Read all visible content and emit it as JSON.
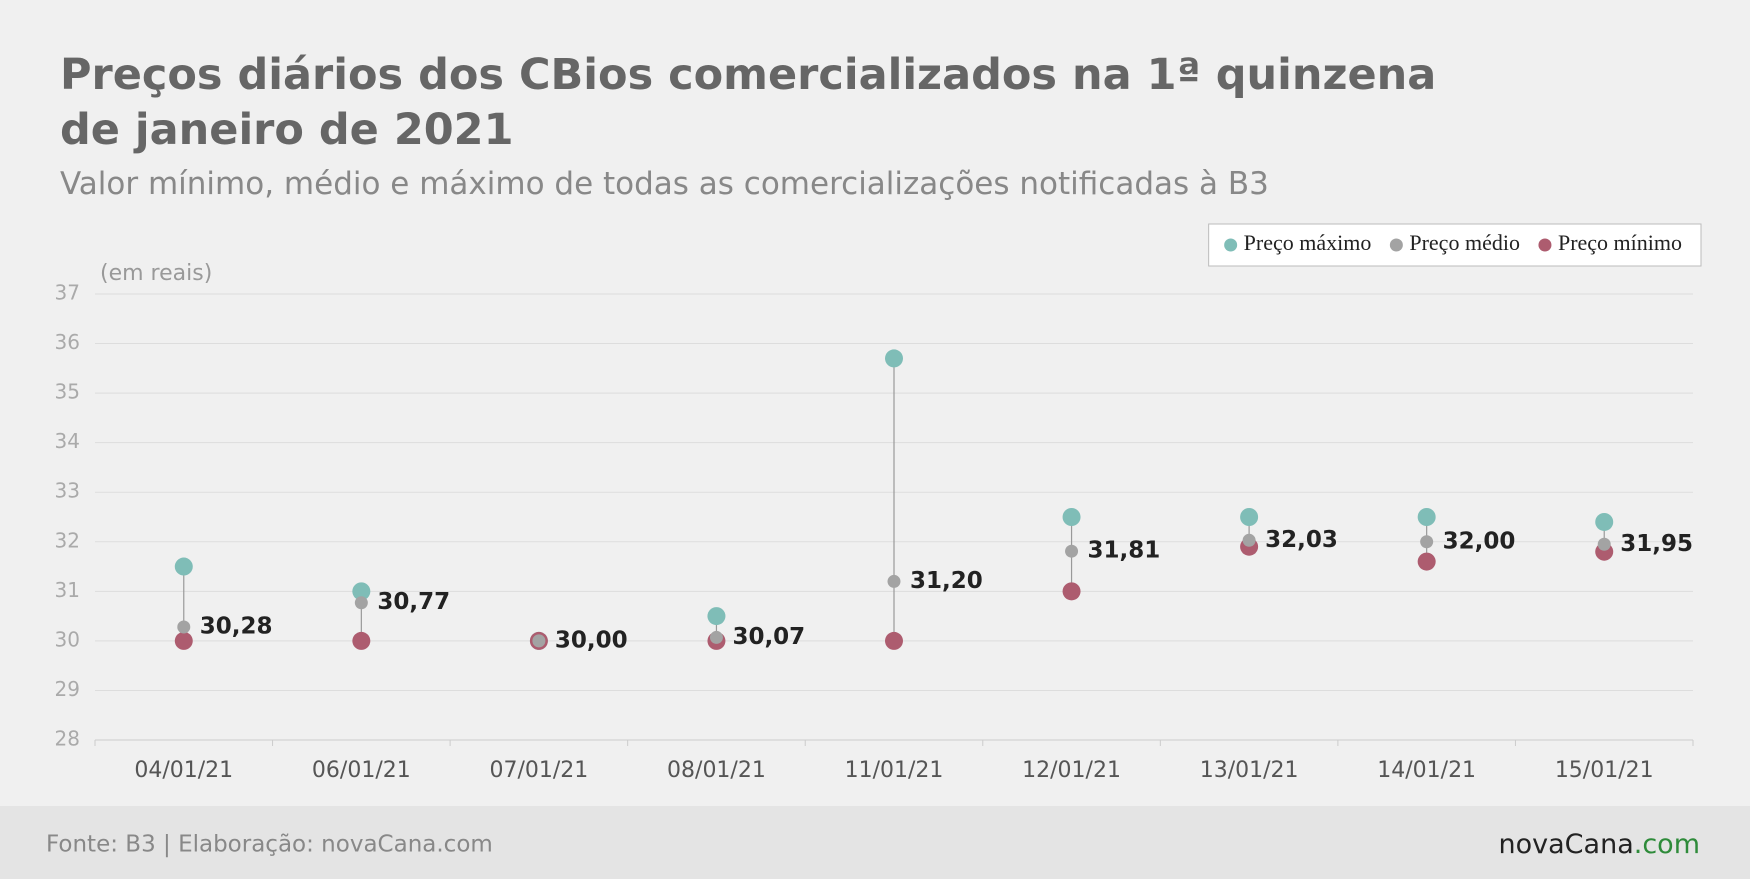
{
  "chart_data": {
    "type": "dumbbell",
    "title": "Preços diários dos CBios comercializados na 1ª quinzena de janeiro de 2021",
    "subtitle": "Valor mínimo, médio e máximo de todas as comercializações notificadas à B3",
    "y_label": "(em reais)",
    "categories": [
      "04/01/21",
      "06/01/21",
      "07/01/21",
      "08/01/21",
      "11/01/21",
      "12/01/21",
      "13/01/21",
      "14/01/21",
      "15/01/21"
    ],
    "series": [
      {
        "name": "Preço máximo",
        "color": "#7fbdb7",
        "values": [
          31.5,
          31.0,
          30.0,
          30.5,
          35.7,
          32.5,
          32.5,
          32.5,
          32.4
        ]
      },
      {
        "name": "Preço médio",
        "color": "#a3a3a3",
        "values": [
          30.28,
          30.77,
          30.0,
          30.07,
          31.2,
          31.81,
          32.03,
          32.0,
          31.95
        ],
        "value_labels": [
          "30,28",
          "30,77",
          "30,00",
          "30,07",
          "31,20",
          "31,81",
          "32,03",
          "32,00",
          "31,95"
        ]
      },
      {
        "name": "Preço mínimo",
        "color": "#ad5c6f",
        "values": [
          30,
          30,
          30,
          30,
          30,
          31,
          31.9,
          31.6,
          31.8
        ]
      }
    ],
    "ylim": [
      28,
      37
    ],
    "yticks": [
      28,
      29,
      30,
      31,
      32,
      33,
      34,
      35,
      36,
      37
    ],
    "grid": true,
    "legend": "top-right",
    "source": "Fonte: B3 | Elaboração: novaCana.com",
    "logo": {
      "name": "novaCana",
      "suffix": ".com"
    }
  }
}
